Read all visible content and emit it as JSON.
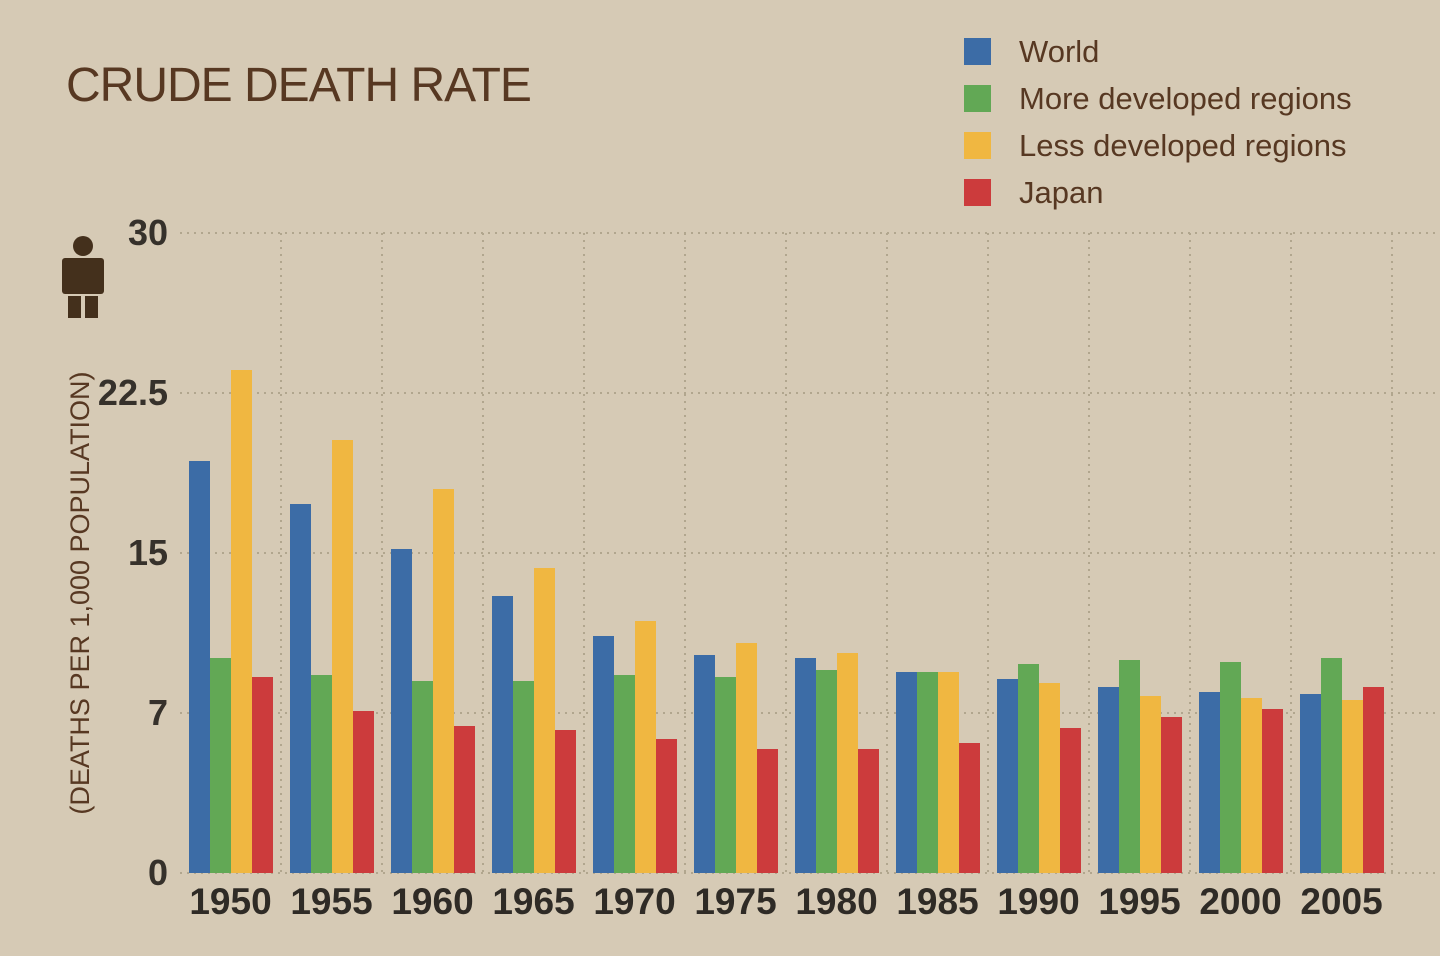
{
  "title": "CRUDE DEATH RATE",
  "y_axis_label": "(DEATHS PER 1,000 POPULATION)",
  "colors": {
    "background": "#d6cab5",
    "title_text": "#573822",
    "tick_text": "#36312b",
    "x_label_text": "#2f2b26",
    "gridline": "#b1a68e",
    "person_icon": "#44301c",
    "world": "#3c6ca6",
    "more_developed": "#62a855",
    "less_developed": "#f0b741",
    "japan": "#cc3b3c"
  },
  "icons": {
    "person_icon": "standing-person-pictogram"
  },
  "chart_data": {
    "type": "bar",
    "title": "CRUDE DEATH RATE",
    "xlabel": "",
    "ylabel": "(DEATHS PER 1,000 POPULATION)",
    "categories": [
      "1950",
      "1955",
      "1960",
      "1965",
      "1970",
      "1975",
      "1980",
      "1985",
      "1990",
      "1995",
      "2000",
      "2005"
    ],
    "series": [
      {
        "name": "World",
        "color": "#3c6ca6",
        "values": [
          19.3,
          17.3,
          15.2,
          13.0,
          11.1,
          10.2,
          10.1,
          9.4,
          9.1,
          8.7,
          8.5,
          8.4
        ]
      },
      {
        "name": "More developed regions",
        "color": "#62a855",
        "values": [
          10.1,
          9.3,
          9.0,
          9.0,
          9.3,
          9.2,
          9.5,
          9.4,
          9.8,
          10.0,
          9.9,
          10.1
        ]
      },
      {
        "name": "Less developed regions",
        "color": "#f0b741",
        "values": [
          23.6,
          20.3,
          18.0,
          14.3,
          11.8,
          10.8,
          10.3,
          9.4,
          8.9,
          8.3,
          8.2,
          8.1
        ]
      },
      {
        "name": "Japan",
        "color": "#cc3b3c",
        "values": [
          9.2,
          7.6,
          6.9,
          6.7,
          6.3,
          5.8,
          5.8,
          6.1,
          6.8,
          7.3,
          7.7,
          8.7
        ]
      }
    ],
    "ylim": [
      0,
      30
    ],
    "ytick_labels": [
      "0",
      "7",
      "15",
      "22.5",
      "30"
    ],
    "grid": true,
    "gridline_style": "dotted",
    "legend_position": "top-right"
  }
}
